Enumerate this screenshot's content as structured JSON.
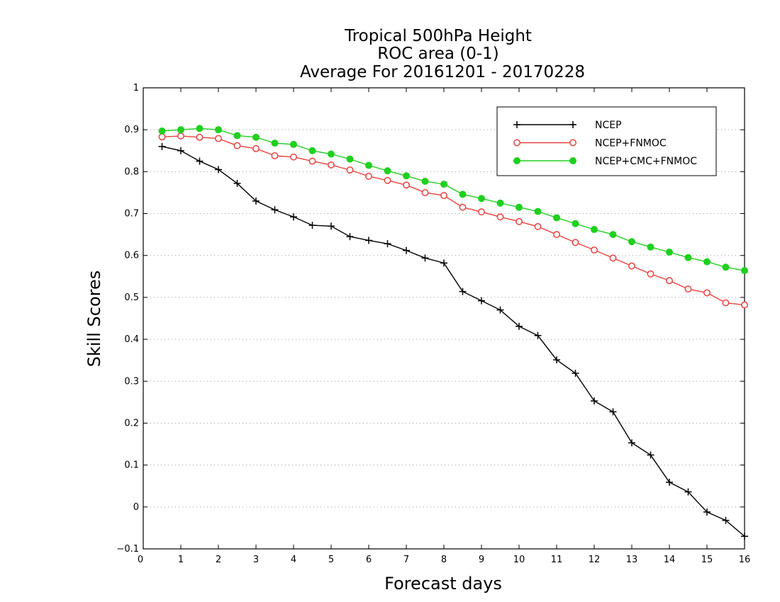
{
  "chart_data": {
    "type": "line",
    "title": [
      "Tropical 500hPa Height",
      "ROC area (0-1)",
      "Average For 20161201 - 20170228"
    ],
    "xlabel": "Forecast days",
    "ylabel": "Skill Scores",
    "xlim": [
      0,
      16
    ],
    "ylim": [
      -0.1,
      1
    ],
    "xticks": [
      "0",
      "1",
      "2",
      "3",
      "4",
      "5",
      "6",
      "7",
      "8",
      "9",
      "10",
      "11",
      "12",
      "13",
      "14",
      "15",
      "16"
    ],
    "yticks": [
      "−0.1",
      "0",
      "0.1",
      "0.2",
      "0.3",
      "0.4",
      "0.5",
      "0.6",
      "0.7",
      "0.8",
      "0.9",
      "1"
    ],
    "grid": "horizontal dotted",
    "legend_position": "top-right",
    "x": [
      0.5,
      1,
      1.5,
      2,
      2.5,
      3,
      3.5,
      4,
      4.5,
      5,
      5.5,
      6,
      6.5,
      7,
      7.5,
      8,
      8.5,
      9,
      9.5,
      10,
      10.5,
      11,
      11.5,
      12,
      12.5,
      13,
      13.5,
      14,
      14.5,
      15,
      15.5,
      16
    ],
    "series": [
      {
        "name": "NCEP",
        "color": "#000000",
        "marker": "plus",
        "values": [
          0.86,
          0.85,
          0.825,
          0.805,
          0.772,
          0.73,
          0.709,
          0.692,
          0.672,
          0.67,
          0.645,
          0.636,
          0.628,
          0.612,
          0.594,
          0.582,
          0.514,
          0.492,
          0.47,
          0.431,
          0.409,
          0.351,
          0.319,
          0.253,
          0.227,
          0.153,
          0.124,
          0.059,
          0.036,
          -0.012,
          -0.032,
          -0.07
        ]
      },
      {
        "name": "NCEP+FNMOC",
        "color": "#e8413c",
        "marker": "open-circle",
        "values": [
          0.883,
          0.885,
          0.882,
          0.879,
          0.862,
          0.855,
          0.838,
          0.835,
          0.825,
          0.816,
          0.804,
          0.789,
          0.779,
          0.768,
          0.75,
          0.743,
          0.715,
          0.704,
          0.692,
          0.681,
          0.669,
          0.65,
          0.631,
          0.613,
          0.594,
          0.575,
          0.556,
          0.54,
          0.52,
          0.511,
          0.487,
          0.482
        ]
      },
      {
        "name": "NCEP+CMC+FNMOC",
        "color": "#1fd01f",
        "marker": "filled-circle",
        "values": [
          0.897,
          0.9,
          0.903,
          0.9,
          0.886,
          0.882,
          0.868,
          0.865,
          0.85,
          0.842,
          0.83,
          0.815,
          0.802,
          0.79,
          0.777,
          0.77,
          0.746,
          0.736,
          0.725,
          0.715,
          0.705,
          0.69,
          0.676,
          0.662,
          0.65,
          0.633,
          0.62,
          0.608,
          0.595,
          0.585,
          0.572,
          0.564
        ]
      }
    ]
  }
}
